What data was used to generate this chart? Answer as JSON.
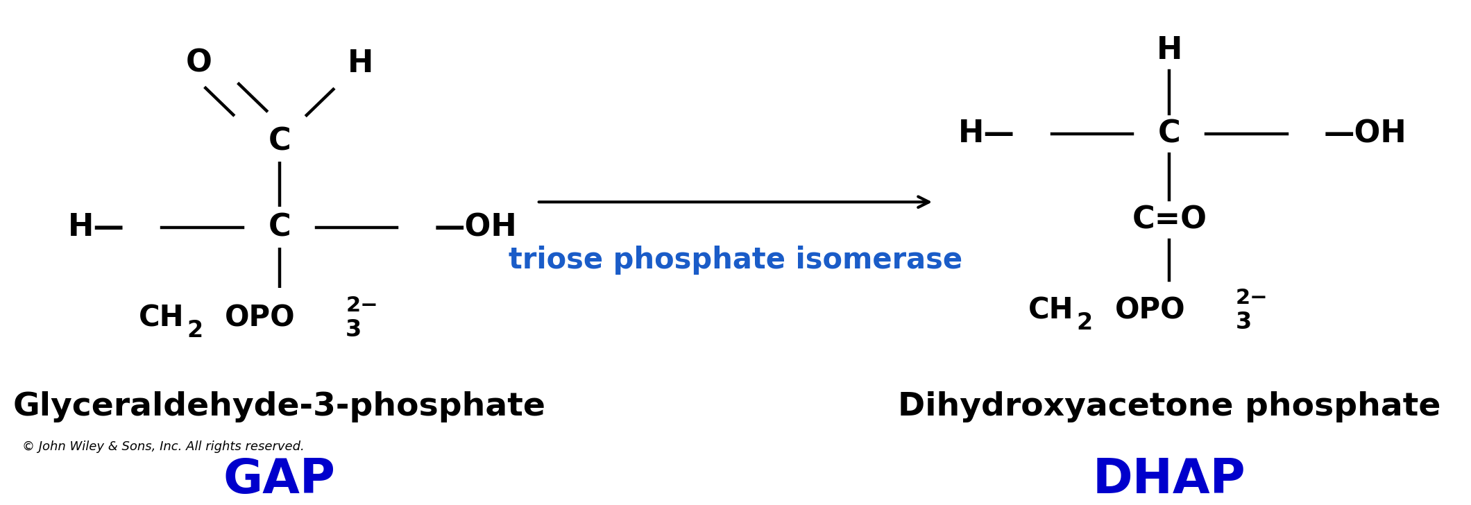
{
  "bg_color": "#ffffff",
  "blue_color": "#0000cc",
  "black_color": "#000000",
  "enzyme_text": "triose phosphate isomerase",
  "enzyme_color": "#1a5cc8",
  "gap_label": "GAP",
  "dhap_label": "DHAP",
  "gap_fullname": "Glyceraldehyde-3-phosphate",
  "dhap_fullname": "Dihydroxyacetone phosphate",
  "copyright_text": "© John Wiley & Sons, Inc. All rights reserved.",
  "struct_font_size": 26,
  "label_font_size": 34,
  "abbrev_font_size": 50,
  "copyright_font_size": 13,
  "enzyme_font_size": 30
}
